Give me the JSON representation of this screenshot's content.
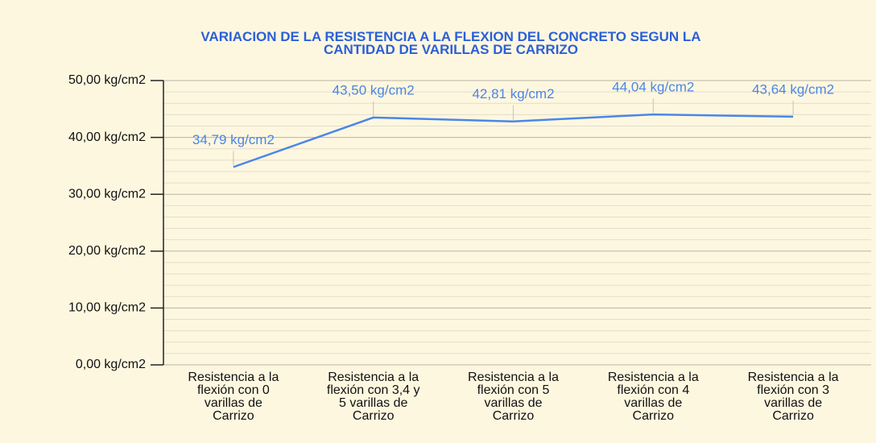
{
  "chart_data": {
    "type": "line",
    "title": "VARIACION DE LA RESISTENCIA A LA FLEXION DEL CONCRETO SEGUN LA CANTIDAD DE VARILLAS DE CARRIZO",
    "categories": [
      "Resistencia a la flexión con 0 varillas de Carrizo",
      "Resistencia a la flexión con 3,4 y 5 varillas de Carrizo",
      "Resistencia a la flexión con 5 varillas de Carrizo",
      "Resistencia a la flexión con 4 varillas de Carrizo",
      "Resistencia a la flexión con 3 varillas de Carrizo"
    ],
    "values": [
      34.79,
      43.5,
      42.81,
      44.04,
      43.64
    ],
    "value_labels": [
      "34,79 kg/cm2",
      "43,50 kg/cm2",
      "42,81 kg/cm2",
      "44,04 kg/cm2",
      "43,64 kg/cm2"
    ],
    "color": "#4a86e8",
    "ylim": [
      0,
      50
    ],
    "yticks": [
      {
        "value": 0,
        "label": "0,00 kg/cm2"
      },
      {
        "value": 10,
        "label": "10,00 kg/cm2"
      },
      {
        "value": 20,
        "label": "20,00 kg/cm2"
      },
      {
        "value": 30,
        "label": "30,00 kg/cm2"
      },
      {
        "value": 40,
        "label": "40,00 kg/cm2"
      },
      {
        "value": 50,
        "label": "50,00 kg/cm2"
      }
    ],
    "grid": true,
    "minor_grid": true
  }
}
